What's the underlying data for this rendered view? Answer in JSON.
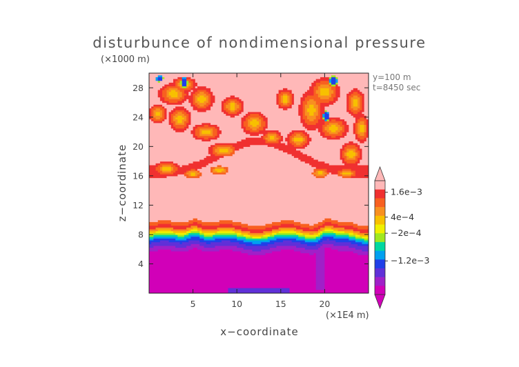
{
  "chart_data": {
    "type": "heatmap",
    "title": "disturbunce of nondimensional pressure",
    "xlabel": "x−coordinate",
    "ylabel": "z−coordinate",
    "x_unit": "(×1E4 m)",
    "y_unit": "(×1000 m)",
    "annotations": [
      "y=100  m",
      "t=8450  sec"
    ],
    "x_range": [
      0,
      25
    ],
    "y_range": [
      0,
      30
    ],
    "x_ticks": [
      5,
      10,
      15,
      20
    ],
    "x_tick_labels": [
      "5",
      "10",
      "15",
      "20"
    ],
    "y_ticks": [
      4,
      8,
      12,
      16,
      20,
      24,
      28
    ],
    "y_tick_labels": [
      "4",
      "8",
      "12",
      "16",
      "20",
      "24",
      "28"
    ],
    "colorbar": {
      "colors": [
        "#d100b8",
        "#a020c8",
        "#6030d8",
        "#2040e8",
        "#00a0f0",
        "#00d8a0",
        "#a0e820",
        "#f0f000",
        "#f8c000",
        "#f89020",
        "#f86020",
        "#f03030",
        "#ffb8b8"
      ],
      "labels": [
        "1.6e−3",
        "4e−4",
        "−2e−4",
        "−1.2e−3"
      ],
      "extend": "both"
    },
    "field_levels": [
      -0.0012,
      -0.001,
      -0.0008,
      -0.0006,
      -0.0004,
      -0.0002,
      0,
      0.0002,
      0.0004,
      0.0008,
      0.0012,
      0.0016
    ],
    "field_description_regions": [
      {
        "z_range": [
          0,
          6.5
        ],
        "value": "< -1.2e-3"
      },
      {
        "z_range": [
          6.5,
          9
        ],
        "value": "transition -1.2e-3 to 1.6e-3"
      },
      {
        "z_range": [
          9,
          16
        ],
        "value": "> 1.6e-3"
      },
      {
        "z_range": [
          16,
          30
        ],
        "value": "mixed 4e-4 to 1.6e-3 with isolated minima"
      }
    ],
    "grid": false,
    "legend_position": "right"
  }
}
